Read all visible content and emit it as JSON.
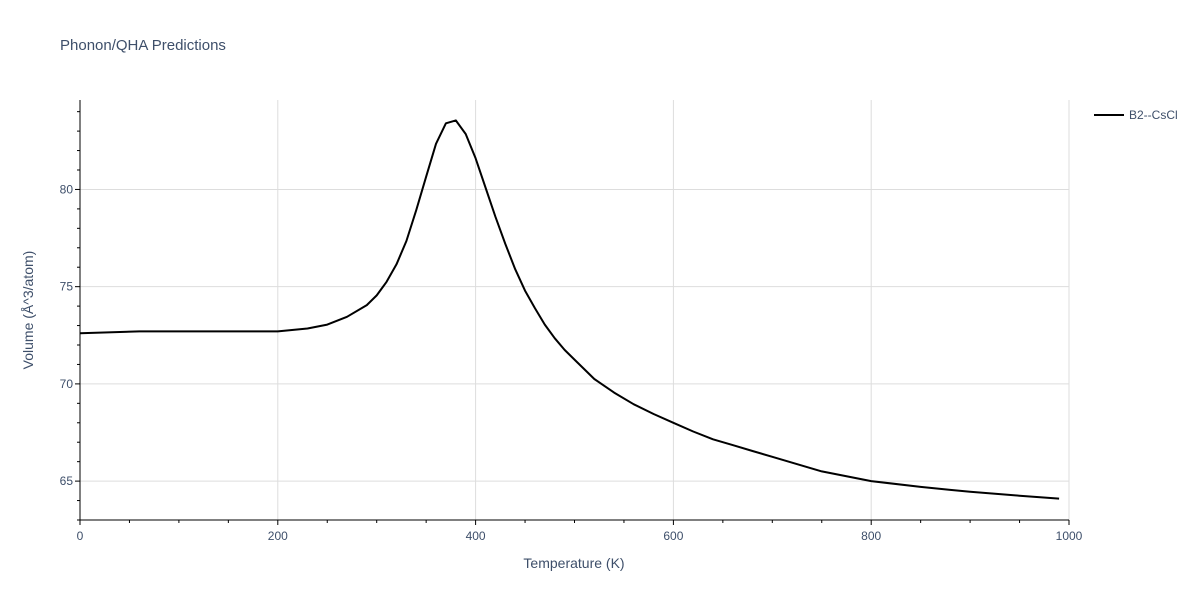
{
  "chart_data": {
    "type": "line",
    "title": "Phonon/QHA Predictions",
    "xlabel": "Temperature (K)",
    "ylabel": "Volume (Å^3/atom)",
    "xlim": [
      0,
      1000
    ],
    "ylim": [
      63,
      84.6
    ],
    "xticks": [
      0,
      200,
      400,
      600,
      800,
      1000
    ],
    "yticks": [
      65,
      70,
      75,
      80
    ],
    "grid": true,
    "legend_position": "top-right",
    "colors": {
      "line": "#000000",
      "grid": "#dddddd",
      "text": "#3e4f6a"
    },
    "series": [
      {
        "name": "B2--CsCl",
        "color": "#000000",
        "x": [
          0,
          60,
          100,
          150,
          200,
          230,
          250,
          270,
          290,
          300,
          310,
          320,
          330,
          340,
          350,
          360,
          370,
          380,
          390,
          400,
          410,
          420,
          430,
          440,
          450,
          460,
          470,
          480,
          490,
          500,
          520,
          540,
          560,
          580,
          600,
          620,
          640,
          660,
          680,
          700,
          750,
          800,
          850,
          880,
          900,
          950,
          990
        ],
        "y": [
          72.6,
          72.7,
          72.7,
          72.7,
          72.7,
          72.85,
          73.05,
          73.45,
          74.05,
          74.55,
          75.25,
          76.15,
          77.35,
          78.95,
          80.65,
          82.35,
          83.4,
          83.55,
          82.85,
          81.6,
          80.1,
          78.6,
          77.2,
          75.9,
          74.8,
          73.9,
          73.05,
          72.35,
          71.75,
          71.25,
          70.25,
          69.55,
          68.95,
          68.45,
          68.0,
          67.55,
          67.15,
          66.85,
          66.55,
          66.25,
          65.5,
          65.0,
          64.7,
          64.55,
          64.45,
          64.25,
          64.1
        ]
      }
    ]
  }
}
